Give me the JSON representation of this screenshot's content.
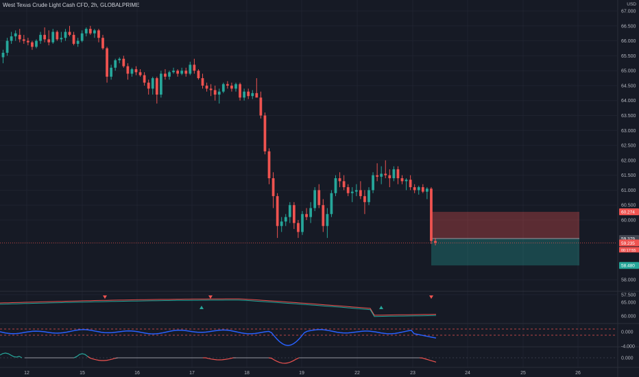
{
  "title": "West Texas Crude Light Cash CFD, 2h, GLOBALPRIME",
  "currency": "USD",
  "colors": {
    "up": "#26a69a",
    "down": "#ef5350",
    "grid": "#1f2330",
    "background": "#161a25",
    "indicator_blue": "#2962ff"
  },
  "chart_data": [
    {
      "type": "candlestick",
      "title": "West Texas Crude Light Cash CFD, 2h, GLOBALPRIME",
      "ylabel": "USD",
      "ylim": [
        57.5,
        67.0
      ],
      "y_ticks": [
        "67.000",
        "66.500",
        "66.000",
        "65.500",
        "65.000",
        "64.500",
        "64.000",
        "63.500",
        "63.000",
        "62.500",
        "62.000",
        "61.500",
        "61.000",
        "60.500",
        "60.000",
        "58.000",
        "57.500"
      ],
      "x_ticks": [
        "12",
        "15",
        "16",
        "17",
        "18",
        "19",
        "22",
        "23",
        "24",
        "25",
        "26"
      ],
      "ohlc": [
        [
          65.45,
          65.7,
          65.25,
          65.6
        ],
        [
          65.6,
          66.1,
          65.5,
          66.0
        ],
        [
          66.0,
          66.3,
          65.9,
          66.15
        ],
        [
          66.15,
          66.35,
          66.0,
          66.25
        ],
        [
          66.2,
          66.4,
          65.95,
          66.05
        ],
        [
          66.05,
          66.2,
          65.9,
          66.0
        ],
        [
          66.0,
          66.1,
          65.85,
          65.95
        ],
        [
          65.95,
          66.0,
          65.7,
          65.8
        ],
        [
          65.8,
          66.05,
          65.75,
          66.0
        ],
        [
          66.0,
          66.3,
          65.9,
          66.2
        ],
        [
          66.2,
          66.45,
          65.95,
          66.05
        ],
        [
          66.05,
          66.35,
          65.85,
          65.95
        ],
        [
          65.95,
          66.4,
          65.9,
          66.3
        ],
        [
          66.3,
          66.35,
          66.0,
          66.05
        ],
        [
          66.05,
          66.3,
          65.95,
          66.1
        ],
        [
          66.1,
          66.4,
          66.0,
          66.3
        ],
        [
          66.3,
          66.5,
          66.15,
          66.2
        ],
        [
          66.2,
          66.3,
          65.85,
          65.9
        ],
        [
          65.9,
          66.1,
          65.8,
          66.0
        ],
        [
          66.0,
          66.35,
          65.95,
          66.25
        ],
        [
          66.25,
          66.45,
          66.15,
          66.4
        ],
        [
          66.4,
          66.5,
          66.2,
          66.25
        ],
        [
          66.25,
          66.4,
          66.1,
          66.35
        ],
        [
          66.35,
          66.4,
          65.95,
          66.1
        ],
        [
          66.1,
          66.2,
          65.7,
          65.75
        ],
        [
          65.75,
          65.8,
          64.6,
          64.8
        ],
        [
          64.8,
          65.2,
          64.7,
          65.1
        ],
        [
          65.1,
          65.4,
          65.0,
          65.35
        ],
        [
          65.35,
          65.45,
          65.25,
          65.4
        ],
        [
          65.4,
          65.5,
          65.1,
          65.15
        ],
        [
          65.15,
          65.25,
          64.7,
          64.9
        ],
        [
          64.9,
          65.1,
          64.8,
          65.05
        ],
        [
          65.05,
          65.15,
          64.85,
          64.95
        ],
        [
          64.95,
          65.05,
          64.8,
          64.85
        ],
        [
          64.85,
          64.95,
          64.5,
          64.6
        ],
        [
          64.6,
          64.7,
          64.2,
          64.4
        ],
        [
          64.4,
          64.8,
          64.2,
          64.75
        ],
        [
          64.75,
          64.8,
          63.9,
          64.2
        ],
        [
          64.2,
          65.0,
          64.1,
          64.9
        ],
        [
          64.9,
          65.05,
          64.7,
          64.8
        ],
        [
          64.8,
          65.0,
          64.7,
          64.95
        ],
        [
          64.95,
          65.1,
          64.9,
          65.0
        ],
        [
          65.0,
          65.05,
          64.8,
          64.9
        ],
        [
          64.9,
          65.1,
          64.85,
          65.0
        ],
        [
          65.0,
          65.1,
          64.8,
          64.9
        ],
        [
          64.9,
          65.3,
          64.85,
          65.2
        ],
        [
          65.2,
          65.4,
          64.9,
          65.0
        ],
        [
          65.0,
          65.05,
          64.7,
          64.75
        ],
        [
          64.75,
          64.9,
          64.4,
          64.5
        ],
        [
          64.5,
          64.6,
          64.3,
          64.4
        ],
        [
          64.4,
          64.55,
          64.15,
          64.35
        ],
        [
          64.35,
          64.5,
          64.0,
          64.2
        ],
        [
          64.2,
          64.4,
          63.9,
          64.3
        ],
        [
          64.3,
          64.6,
          64.25,
          64.55
        ],
        [
          64.55,
          64.65,
          64.4,
          64.5
        ],
        [
          64.5,
          64.6,
          64.3,
          64.4
        ],
        [
          64.4,
          64.6,
          64.3,
          64.55
        ],
        [
          64.55,
          64.6,
          64.0,
          64.1
        ],
        [
          64.1,
          64.4,
          64.0,
          64.3
        ],
        [
          64.3,
          64.4,
          64.05,
          64.15
        ],
        [
          64.15,
          64.35,
          64.05,
          64.25
        ],
        [
          64.25,
          64.75,
          64.15,
          64.1
        ],
        [
          64.1,
          64.3,
          63.4,
          63.5
        ],
        [
          63.5,
          63.6,
          62.2,
          62.3
        ],
        [
          62.3,
          62.4,
          61.2,
          61.4
        ],
        [
          61.4,
          61.6,
          60.4,
          60.8
        ],
        [
          60.8,
          60.9,
          59.4,
          59.8
        ],
        [
          59.8,
          60.1,
          59.6,
          59.95
        ],
        [
          59.95,
          60.2,
          59.8,
          60.1
        ],
        [
          60.1,
          60.6,
          59.9,
          60.5
        ],
        [
          60.5,
          60.6,
          59.7,
          59.9
        ],
        [
          59.9,
          60.0,
          59.4,
          59.6
        ],
        [
          59.6,
          60.3,
          59.5,
          60.2
        ],
        [
          60.2,
          60.4,
          60.0,
          60.1
        ],
        [
          60.1,
          60.6,
          59.9,
          60.4
        ],
        [
          60.4,
          61.1,
          60.3,
          61.0
        ],
        [
          61.0,
          61.2,
          60.4,
          60.5
        ],
        [
          60.5,
          60.7,
          59.6,
          59.8
        ],
        [
          59.8,
          60.4,
          59.4,
          60.2
        ],
        [
          60.2,
          61.0,
          60.1,
          60.9
        ],
        [
          60.9,
          61.5,
          60.8,
          61.4
        ],
        [
          61.4,
          61.6,
          61.1,
          61.3
        ],
        [
          61.3,
          61.5,
          61.0,
          61.1
        ],
        [
          61.1,
          61.2,
          60.8,
          60.9
        ],
        [
          60.9,
          61.1,
          60.6,
          60.95
        ],
        [
          60.95,
          61.2,
          60.8,
          61.0
        ],
        [
          61.0,
          61.3,
          60.7,
          60.8
        ],
        [
          60.8,
          61.0,
          60.2,
          60.6
        ],
        [
          60.6,
          61.1,
          60.5,
          61.0
        ],
        [
          61.0,
          61.6,
          60.9,
          61.5
        ],
        [
          61.5,
          61.9,
          61.3,
          61.45
        ],
        [
          61.45,
          61.8,
          61.2,
          61.55
        ],
        [
          61.55,
          62.0,
          61.4,
          61.5
        ],
        [
          61.5,
          61.7,
          61.1,
          61.4
        ],
        [
          61.4,
          61.8,
          61.3,
          61.7
        ],
        [
          61.7,
          61.8,
          61.2,
          61.4
        ],
        [
          61.4,
          61.5,
          61.2,
          61.3
        ],
        [
          61.3,
          61.4,
          61.0,
          61.35
        ],
        [
          61.35,
          61.5,
          61.0,
          61.1
        ],
        [
          61.1,
          61.2,
          60.9,
          61.0
        ],
        [
          61.0,
          61.15,
          60.85,
          61.1
        ],
        [
          61.1,
          61.2,
          60.9,
          60.95
        ],
        [
          60.95,
          61.1,
          60.7,
          61.05
        ],
        [
          61.05,
          61.1,
          59.2,
          59.3
        ],
        [
          59.3,
          59.4,
          59.15,
          59.24
        ]
      ],
      "current_price": "59.235",
      "countdown": "00:17:55",
      "price_tags": [
        "60.274",
        "59.379",
        "59.235",
        "58.480"
      ],
      "position": {
        "type": "short",
        "entry": 59.379,
        "stop": 60.274,
        "target": 58.48
      }
    },
    {
      "type": "line",
      "name": "moving averages",
      "y_ticks": [
        "65.000",
        "60.000"
      ],
      "markers": [
        "sell",
        "buy",
        "sell",
        "buy",
        "sell"
      ]
    },
    {
      "type": "line",
      "name": "oscillator",
      "y_ticks": [
        "0.000",
        "-4.000"
      ]
    },
    {
      "type": "line",
      "name": "histogram oscillator",
      "y_ticks": [
        "0.000"
      ]
    }
  ]
}
